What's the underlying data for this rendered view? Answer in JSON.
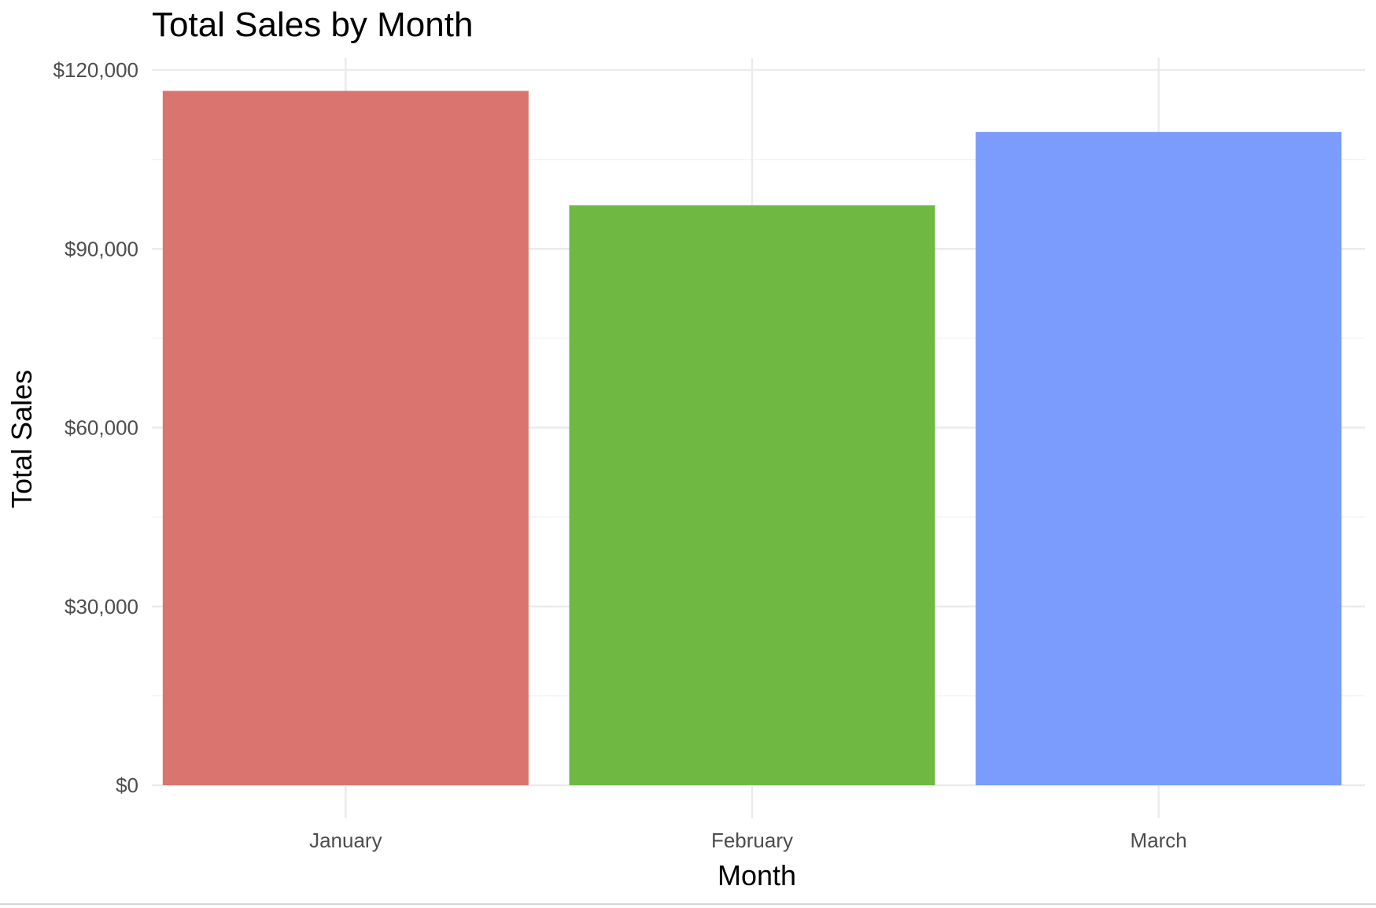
{
  "chart_data": {
    "type": "bar",
    "title": "Total Sales by Month",
    "xlabel": "Month",
    "ylabel": "Total Sales",
    "categories": [
      "January",
      "February",
      "March"
    ],
    "values": [
      116500,
      97300,
      109600
    ],
    "colors": [
      "#d9756e",
      "#6fb943",
      "#7b9cfc"
    ],
    "ylim": [
      0,
      120000
    ],
    "y_ticks": [
      0,
      30000,
      60000,
      90000,
      120000
    ],
    "y_tick_labels": [
      "$0",
      "$30,000",
      "$60,000",
      "$90,000",
      "$120,000"
    ],
    "grid": true,
    "legend": "none"
  }
}
